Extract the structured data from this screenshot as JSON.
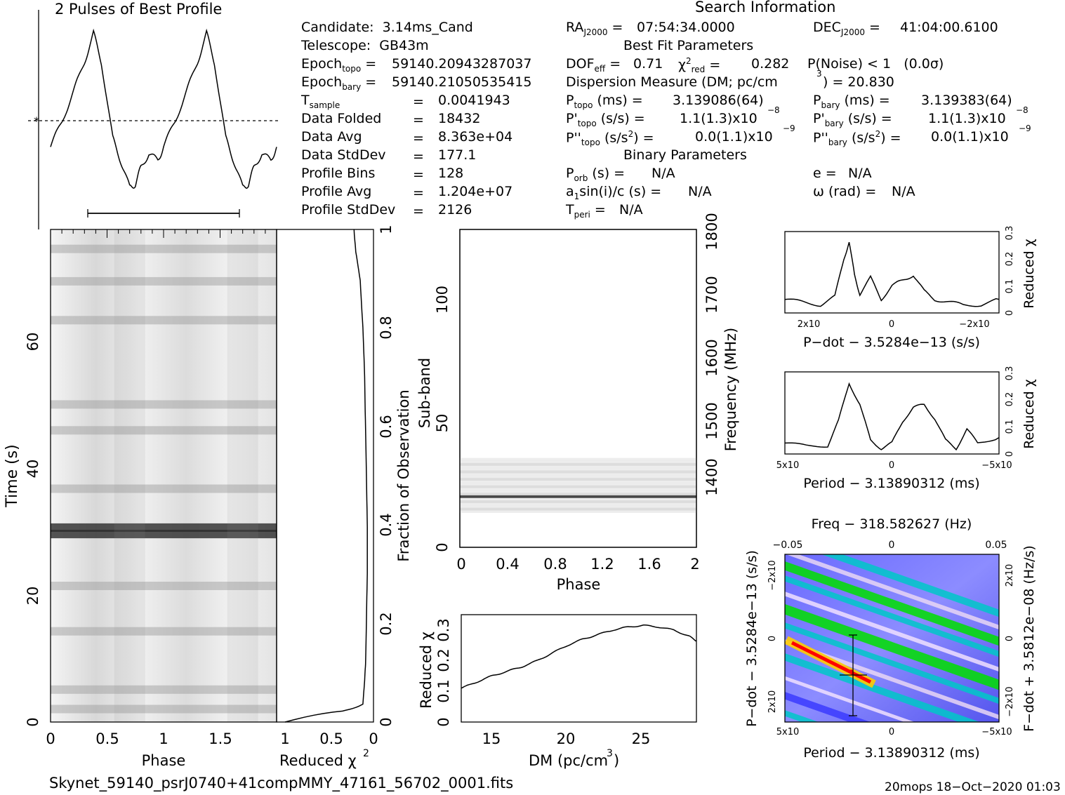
{
  "header": {
    "profile_title": "2 Pulses of Best Profile",
    "search_title": "Search Information",
    "best_fit_title": "Best Fit Parameters",
    "binary_title": "Binary Parameters"
  },
  "candidate_info": {
    "candidate": "Candidate:  3.14ms_Cand",
    "telescope": "Telescope:  GB43m",
    "epoch_topo": "59140.20943287037",
    "epoch_bary": "59140.21050535415",
    "t_sample": "0.0041943",
    "data_folded": "18432",
    "data_avg": "8.363e+04",
    "data_stddev": "177.1",
    "profile_bins": "128",
    "profile_avg": "1.204e+07",
    "profile_stddev": "2126"
  },
  "search_info": {
    "ra": "07:54:34.0000",
    "dec": "41:04:00.6100",
    "dof_eff": "0.71",
    "chi2_red": "0.282",
    "p_noise": "P(Noise) < 1   (0.0σ)",
    "dm_line": "Dispersion Measure (DM; pc/cm",
    "dm_value": ") = 20.830",
    "p_topo": "3.139086(64)",
    "p_bary": "3.139383(64)",
    "pd_topo": "1.1(1.3)x10",
    "pd_bary": "1.1(1.3)x10",
    "pdd_topo": "0.0(1.1)x10",
    "pdd_bary": "0.0(1.1)x10",
    "pd_exp": "−8",
    "pdd_exp": "−9",
    "p_orb": "N/A",
    "a1sini": "N/A",
    "t_peri": "N/A",
    "e": "N/A",
    "omega": "N/A"
  },
  "footer": {
    "filename": "Skynet_59140_psrJ0740+41compMMY_47161_56702_0001.fits",
    "stamp": "20mops 18−Oct−2020 01:03"
  },
  "colors": {
    "line": "#000000",
    "contour_low": "#3b3bff",
    "contour_mid": "#00c8c8",
    "contour_high": "#00e000",
    "peak": "#ff0000"
  },
  "chart_data": [
    {
      "id": "profile",
      "type": "line",
      "title": "2 Pulses of Best Profile",
      "xlim": [
        0,
        2
      ],
      "x": [
        0.0,
        0.1,
        0.2,
        0.3,
        0.38,
        0.45,
        0.55,
        0.62,
        0.7,
        0.75,
        0.8,
        0.87,
        0.95,
        1.0,
        1.1,
        1.2,
        1.3,
        1.38,
        1.45,
        1.55,
        1.62,
        1.7,
        1.75,
        1.8,
        1.87,
        1.95,
        2.0
      ],
      "y": [
        0.3,
        0.45,
        0.62,
        0.8,
        0.97,
        0.8,
        0.35,
        0.22,
        0.06,
        0.08,
        0.18,
        0.26,
        0.22,
        0.3,
        0.45,
        0.62,
        0.8,
        0.97,
        0.8,
        0.35,
        0.22,
        0.06,
        0.08,
        0.18,
        0.26,
        0.22,
        0.3
      ],
      "mean_level": 0.52,
      "annotation": "phase bar 0.35–1.65"
    },
    {
      "id": "time-phase",
      "type": "heatmap",
      "xlabel": "Phase",
      "ylabel": "Time (s)",
      "x_ticks": [
        "0",
        "0.5",
        "1",
        "1.5"
      ],
      "y_ticks": [
        "0",
        "20",
        "40",
        "60"
      ],
      "xlim": [
        0,
        2
      ],
      "ylim": [
        0,
        76
      ],
      "bright_rows_s": [
        2,
        5,
        14,
        21,
        29,
        30,
        36,
        45,
        49,
        62,
        68,
        73
      ]
    },
    {
      "id": "reduced-chi2-vs-time",
      "type": "line",
      "xlabel": "Reduced χ",
      "ylabel": "Fraction of Observation",
      "x_ticks": [
        "1",
        "0.5",
        "0"
      ],
      "y_ticks": [
        "0",
        "0.2",
        "0.4",
        "0.6",
        "0.8",
        "1"
      ],
      "frac": [
        0.0,
        0.02,
        0.04,
        0.08,
        0.12,
        0.2,
        0.3,
        0.4,
        0.5,
        0.6,
        0.7,
        0.8,
        0.9,
        0.95,
        1.0
      ],
      "chi2": [
        1.0,
        0.35,
        0.12,
        0.1,
        0.09,
        0.08,
        0.07,
        0.07,
        0.08,
        0.09,
        0.1,
        0.12,
        0.15,
        0.2,
        0.22
      ]
    },
    {
      "id": "subband-phase",
      "type": "heatmap",
      "xlabel": "Phase",
      "ylabel": "Sub-band",
      "ylabel_right": "Frequency (MHz)",
      "x_ticks": [
        "0",
        "0.4",
        "0.8",
        "1.2",
        "1.6",
        "2"
      ],
      "y_ticks": [
        "0",
        "50",
        "100"
      ],
      "y_ticks_right": [
        "1400",
        "1500",
        "1600",
        "1700",
        "1800"
      ],
      "xlim": [
        0,
        2
      ],
      "ylim": [
        0,
        128
      ],
      "occupied_subbands": [
        14,
        35
      ],
      "brightest_subband": 20
    },
    {
      "id": "chi2-vs-dm",
      "type": "line",
      "xlabel": "DM (pc/cm",
      "ylabel": "Reduced χ",
      "x_ticks": [
        "15",
        "20",
        "25"
      ],
      "y_ticks": [
        "0",
        "0.1",
        "0.2",
        "0.3"
      ],
      "xlim": [
        13,
        28.5
      ],
      "ylim": [
        0,
        0.35
      ],
      "x": [
        13,
        14,
        15,
        16,
        17,
        18,
        19,
        20,
        21,
        22,
        23,
        24,
        25,
        26,
        27,
        28,
        28.5
      ],
      "y": [
        0.11,
        0.13,
        0.15,
        0.165,
        0.18,
        0.2,
        0.225,
        0.25,
        0.27,
        0.285,
        0.3,
        0.31,
        0.315,
        0.31,
        0.3,
        0.28,
        0.265
      ]
    },
    {
      "id": "chi2-vs-pdot",
      "type": "line",
      "xlabel": "P−dot − 3.5284e−13 (s/s)",
      "ylabel": "Reduced χ",
      "x_ticks": [
        "2x10",
        "0",
        "−2x10"
      ],
      "y_ticks": [
        "0",
        "0.1",
        "0.2",
        "0.3"
      ],
      "xlim": [
        3e-08,
        -3e-08
      ],
      "ylim": [
        0,
        0.3
      ],
      "x": [
        3e-08,
        2.5e-08,
        2e-08,
        1.6e-08,
        1.35e-08,
        1.2e-08,
        1.05e-08,
        9e-09,
        6e-09,
        3e-09,
        0,
        -3e-09,
        -6e-09,
        -9e-09,
        -1.2e-08,
        -1.6e-08,
        -2e-08,
        -2.5e-08,
        -3e-08
      ],
      "y": [
        0.05,
        0.04,
        0.03,
        0.06,
        0.2,
        0.26,
        0.14,
        0.07,
        0.13,
        0.05,
        0.1,
        0.12,
        0.14,
        0.08,
        0.05,
        0.04,
        0.03,
        0.03,
        0.05
      ]
    },
    {
      "id": "chi2-vs-period",
      "type": "line",
      "xlabel": "Period − 3.13890312 (ms)",
      "ylabel": "Reduced χ",
      "x_ticks": [
        "5x10",
        "0",
        "−5x10"
      ],
      "y_ticks": [
        "0",
        "0.1",
        "0.2",
        "0.3"
      ],
      "xlim": [
        0.0005,
        -0.0005
      ],
      "ylim": [
        0,
        0.3
      ],
      "x": [
        0.0005,
        0.0004,
        0.0003,
        0.00025,
        0.0002,
        0.00015,
        0.0001,
        5e-05,
        0,
        -5e-05,
        -0.0001,
        -0.00015,
        -0.0002,
        -0.00025,
        -0.0003,
        -0.00035,
        -0.0004,
        -0.0005
      ],
      "y": [
        0.04,
        0.03,
        0.03,
        0.12,
        0.26,
        0.18,
        0.05,
        0.02,
        0.04,
        0.12,
        0.17,
        0.18,
        0.13,
        0.05,
        0.02,
        0.09,
        0.04,
        0.06
      ]
    },
    {
      "id": "pdot-period-contour",
      "type": "heatmap",
      "title": "Freq − 318.582627 (Hz)",
      "xlabel": "Period − 3.13890312 (ms)",
      "ylabel": "P−dot − 3.5284e−13 (s/s)",
      "ylabel_right": "F−dot + 3.5812e−08 (Hz/s)",
      "x_ticks": [
        "5x10",
        "0",
        "−5x10"
      ],
      "top_ticks": [
        "−0.05",
        "0",
        "0.05"
      ],
      "y_ticks": [
        "−2x10",
        "0",
        "2x10"
      ],
      "y_ticks_right": [
        "2x10",
        "0",
        "−2x10"
      ],
      "best_period": 0.00019,
      "best_pdot": 1.2e-08
    }
  ]
}
